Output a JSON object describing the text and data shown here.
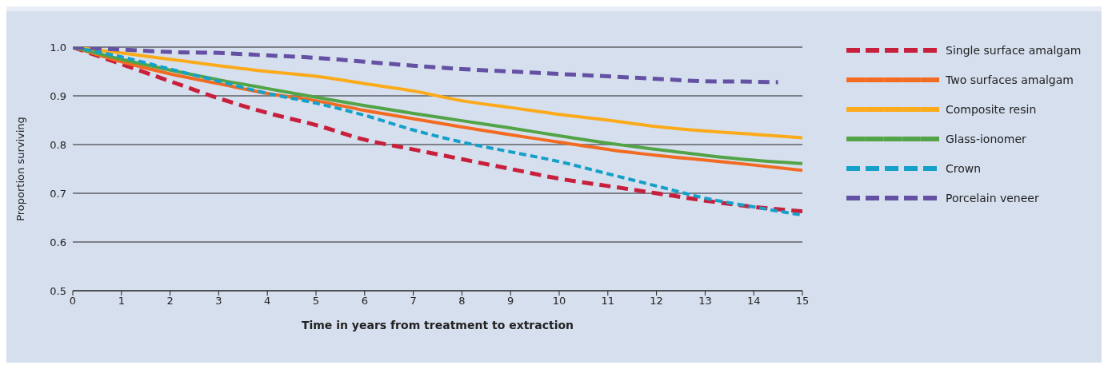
{
  "chart_data": {
    "type": "line",
    "xlabel": "Time in years from treatment to extraction",
    "ylabel": "Proportion surviving",
    "x": [
      0,
      1,
      2,
      3,
      4,
      5,
      6,
      7,
      8,
      9,
      10,
      11,
      12,
      13,
      14,
      15
    ],
    "xlim": [
      0,
      15
    ],
    "xticks": [
      0,
      1,
      2,
      3,
      4,
      5,
      6,
      7,
      8,
      9,
      10,
      11,
      12,
      13,
      14,
      15
    ],
    "ylim": [
      0.5,
      1.0
    ],
    "yticks": [
      {
        "value": 0.5,
        "label": "0.5"
      },
      {
        "value": 0.6,
        "label": "0.6"
      },
      {
        "value": 0.7,
        "label": "0.7"
      },
      {
        "value": 0.8,
        "label": "0.8"
      },
      {
        "value": 0.9,
        "label": "0.9"
      },
      {
        "value": 1.0,
        "label": "1.0"
      }
    ],
    "grid": "y",
    "legend": "right",
    "marker": "none",
    "series": [
      {
        "name": "Single surface amalgam",
        "color": "#c8203c",
        "line_style": "dashed",
        "values": [
          1.0,
          0.965,
          0.93,
          0.895,
          0.865,
          0.84,
          0.81,
          0.79,
          0.77,
          0.75,
          0.73,
          0.715,
          0.7,
          0.685,
          0.672,
          0.663
        ]
      },
      {
        "name": "Two surfaces amalgam",
        "color": "#f26b21",
        "line_style": "solid",
        "values": [
          1.0,
          0.97,
          0.945,
          0.925,
          0.905,
          0.89,
          0.87,
          0.853,
          0.836,
          0.82,
          0.805,
          0.79,
          0.778,
          0.768,
          0.758,
          0.747
        ]
      },
      {
        "name": "Composite resin",
        "color": "#fbaa19",
        "line_style": "solid",
        "values": [
          1.0,
          0.988,
          0.975,
          0.962,
          0.95,
          0.94,
          0.925,
          0.91,
          0.89,
          0.876,
          0.862,
          0.85,
          0.837,
          0.828,
          0.821,
          0.814
        ]
      },
      {
        "name": "Glass-ionomer",
        "color": "#52a447",
        "line_style": "solid",
        "values": [
          1.0,
          0.975,
          0.953,
          0.933,
          0.915,
          0.897,
          0.88,
          0.864,
          0.849,
          0.834,
          0.818,
          0.803,
          0.79,
          0.778,
          0.768,
          0.761
        ]
      },
      {
        "name": "Crown",
        "color": "#14a0c8",
        "line_style": "dashed",
        "values": [
          1.0,
          0.98,
          0.955,
          0.93,
          0.905,
          0.885,
          0.86,
          0.83,
          0.805,
          0.785,
          0.765,
          0.74,
          0.715,
          0.69,
          0.672,
          0.655
        ]
      },
      {
        "name": "Porcelain veneer",
        "color": "#6551a4",
        "line_style": "dashed",
        "x": [
          0,
          1,
          2,
          3,
          4,
          5,
          6,
          7,
          8,
          9,
          10,
          11,
          12,
          13,
          14,
          14.5
        ],
        "values": [
          1.0,
          0.995,
          0.99,
          0.988,
          0.983,
          0.978,
          0.97,
          0.962,
          0.955,
          0.95,
          0.945,
          0.94,
          0.935,
          0.93,
          0.929,
          0.928
        ]
      }
    ]
  }
}
